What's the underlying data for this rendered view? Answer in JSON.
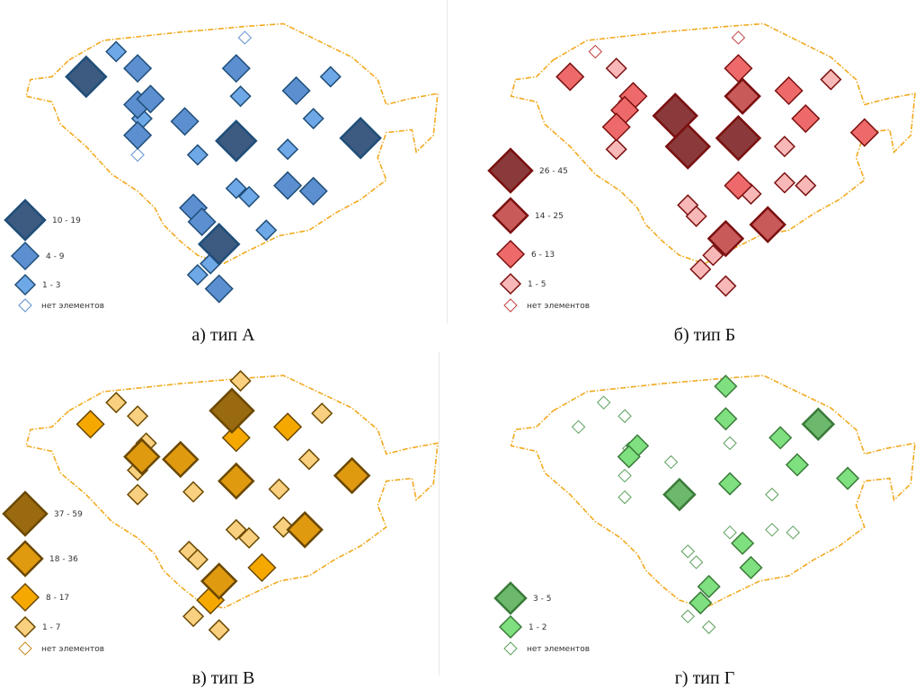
{
  "panels": [
    {
      "id": "a",
      "caption": "а) тип А",
      "colors": {
        "large": "#3d5a80",
        "medium": "#5b8fd0",
        "small": "#6fa8e6",
        "none": "#ffffff",
        "stroke": "#1f4e79",
        "none_stroke": "#5b8fd0"
      },
      "legend": [
        {
          "class": "large",
          "label": "10 - 19"
        },
        {
          "class": "medium",
          "label": "4 - 9"
        },
        {
          "class": "small",
          "label": "1 - 3"
        },
        {
          "class": "none",
          "label": "нет элементов"
        }
      ],
      "markers": [
        {
          "c": "large",
          "x": 0.18,
          "y": 0.23
        },
        {
          "c": "small",
          "x": 0.25,
          "y": 0.14
        },
        {
          "c": "medium",
          "x": 0.3,
          "y": 0.2
        },
        {
          "c": "medium",
          "x": 0.3,
          "y": 0.33
        },
        {
          "c": "medium",
          "x": 0.33,
          "y": 0.31
        },
        {
          "c": "small",
          "x": 0.31,
          "y": 0.38
        },
        {
          "c": "medium",
          "x": 0.3,
          "y": 0.44
        },
        {
          "c": "none",
          "x": 0.3,
          "y": 0.51
        },
        {
          "c": "medium",
          "x": 0.41,
          "y": 0.39
        },
        {
          "c": "small",
          "x": 0.44,
          "y": 0.51
        },
        {
          "c": "medium",
          "x": 0.53,
          "y": 0.2
        },
        {
          "c": "small",
          "x": 0.54,
          "y": 0.3
        },
        {
          "c": "large",
          "x": 0.53,
          "y": 0.46
        },
        {
          "c": "none",
          "x": 0.55,
          "y": 0.09
        },
        {
          "c": "medium",
          "x": 0.67,
          "y": 0.28
        },
        {
          "c": "small",
          "x": 0.75,
          "y": 0.23
        },
        {
          "c": "small",
          "x": 0.71,
          "y": 0.38
        },
        {
          "c": "small",
          "x": 0.65,
          "y": 0.49
        },
        {
          "c": "large",
          "x": 0.82,
          "y": 0.45
        },
        {
          "c": "small",
          "x": 0.53,
          "y": 0.63
        },
        {
          "c": "small",
          "x": 0.56,
          "y": 0.66
        },
        {
          "c": "medium",
          "x": 0.65,
          "y": 0.62
        },
        {
          "c": "medium",
          "x": 0.71,
          "y": 0.64
        },
        {
          "c": "medium",
          "x": 0.43,
          "y": 0.7
        },
        {
          "c": "medium",
          "x": 0.45,
          "y": 0.75
        },
        {
          "c": "small",
          "x": 0.6,
          "y": 0.78
        },
        {
          "c": "large",
          "x": 0.49,
          "y": 0.83
        },
        {
          "c": "small",
          "x": 0.47,
          "y": 0.9
        },
        {
          "c": "small",
          "x": 0.44,
          "y": 0.94
        },
        {
          "c": "medium",
          "x": 0.49,
          "y": 0.99
        }
      ]
    },
    {
      "id": "b",
      "caption": "б) тип Б",
      "colors": {
        "xlarge": "#8a3a3a",
        "large": "#c85a5a",
        "medium": "#ee6a6a",
        "small": "#f8b8b8",
        "none": "#ffffff",
        "stroke": "#7a1010",
        "none_stroke": "#c04040"
      },
      "legend": [
        {
          "class": "xlarge",
          "label": "26 - 45"
        },
        {
          "class": "large",
          "label": "14 - 25"
        },
        {
          "class": "medium",
          "label": "6 - 13"
        },
        {
          "class": "small",
          "label": "1 - 5"
        },
        {
          "class": "none",
          "label": "нет элементов"
        }
      ],
      "markers": [
        {
          "c": "none",
          "x": 0.24,
          "y": 0.14
        },
        {
          "c": "medium",
          "x": 0.18,
          "y": 0.23
        },
        {
          "c": "small",
          "x": 0.29,
          "y": 0.2
        },
        {
          "c": "medium",
          "x": 0.33,
          "y": 0.3
        },
        {
          "c": "none",
          "x": 0.31,
          "y": 0.32
        },
        {
          "c": "medium",
          "x": 0.31,
          "y": 0.35
        },
        {
          "c": "medium",
          "x": 0.29,
          "y": 0.41
        },
        {
          "c": "small",
          "x": 0.29,
          "y": 0.49
        },
        {
          "c": "xlarge",
          "x": 0.43,
          "y": 0.37
        },
        {
          "c": "xlarge",
          "x": 0.46,
          "y": 0.48
        },
        {
          "c": "xlarge",
          "x": 0.58,
          "y": 0.45
        },
        {
          "c": "none",
          "x": 0.58,
          "y": 0.09
        },
        {
          "c": "medium",
          "x": 0.58,
          "y": 0.2
        },
        {
          "c": "large",
          "x": 0.59,
          "y": 0.3
        },
        {
          "c": "medium",
          "x": 0.7,
          "y": 0.28
        },
        {
          "c": "small",
          "x": 0.8,
          "y": 0.24
        },
        {
          "c": "medium",
          "x": 0.74,
          "y": 0.38
        },
        {
          "c": "small",
          "x": 0.69,
          "y": 0.48
        },
        {
          "c": "medium",
          "x": 0.88,
          "y": 0.43
        },
        {
          "c": "medium",
          "x": 0.58,
          "y": 0.62
        },
        {
          "c": "small",
          "x": 0.61,
          "y": 0.65
        },
        {
          "c": "small",
          "x": 0.69,
          "y": 0.61
        },
        {
          "c": "small",
          "x": 0.74,
          "y": 0.62
        },
        {
          "c": "small",
          "x": 0.46,
          "y": 0.69
        },
        {
          "c": "small",
          "x": 0.48,
          "y": 0.73
        },
        {
          "c": "large",
          "x": 0.65,
          "y": 0.76
        },
        {
          "c": "large",
          "x": 0.55,
          "y": 0.81
        },
        {
          "c": "small",
          "x": 0.52,
          "y": 0.87
        },
        {
          "c": "small",
          "x": 0.49,
          "y": 0.92
        },
        {
          "c": "small",
          "x": 0.55,
          "y": 0.98
        }
      ]
    },
    {
      "id": "c",
      "caption": "в) тип В",
      "colors": {
        "xlarge": "#9a6a10",
        "large": "#e09a10",
        "medium": "#f5a800",
        "small": "#f8d080",
        "none": "#ffffff",
        "stroke": "#6a4800",
        "none_stroke": "#c88a20"
      },
      "legend": [
        {
          "class": "xlarge",
          "label": "37 - 59"
        },
        {
          "class": "large",
          "label": "18 - 36"
        },
        {
          "class": "medium",
          "label": "8 - 17"
        },
        {
          "class": "small",
          "label": "1 - 7"
        },
        {
          "class": "none",
          "label": "нет элементов"
        }
      ],
      "markers": [
        {
          "c": "small",
          "x": 0.25,
          "y": 0.14
        },
        {
          "c": "medium",
          "x": 0.19,
          "y": 0.22
        },
        {
          "c": "small",
          "x": 0.3,
          "y": 0.19
        },
        {
          "c": "small",
          "x": 0.32,
          "y": 0.29
        },
        {
          "c": "none",
          "x": 0.3,
          "y": 0.31
        },
        {
          "c": "large",
          "x": 0.31,
          "y": 0.34
        },
        {
          "c": "small",
          "x": 0.3,
          "y": 0.39
        },
        {
          "c": "small",
          "x": 0.3,
          "y": 0.48
        },
        {
          "c": "large",
          "x": 0.4,
          "y": 0.35
        },
        {
          "c": "small",
          "x": 0.43,
          "y": 0.47
        },
        {
          "c": "small",
          "x": 0.54,
          "y": 0.06
        },
        {
          "c": "xlarge",
          "x": 0.52,
          "y": 0.17
        },
        {
          "c": "medium",
          "x": 0.53,
          "y": 0.27
        },
        {
          "c": "large",
          "x": 0.53,
          "y": 0.43
        },
        {
          "c": "medium",
          "x": 0.65,
          "y": 0.23
        },
        {
          "c": "small",
          "x": 0.73,
          "y": 0.18
        },
        {
          "c": "small",
          "x": 0.7,
          "y": 0.35
        },
        {
          "c": "small",
          "x": 0.63,
          "y": 0.46
        },
        {
          "c": "large",
          "x": 0.8,
          "y": 0.41
        },
        {
          "c": "small",
          "x": 0.53,
          "y": 0.61
        },
        {
          "c": "small",
          "x": 0.56,
          "y": 0.64
        },
        {
          "c": "small",
          "x": 0.64,
          "y": 0.6
        },
        {
          "c": "large",
          "x": 0.69,
          "y": 0.61
        },
        {
          "c": "small",
          "x": 0.42,
          "y": 0.69
        },
        {
          "c": "small",
          "x": 0.44,
          "y": 0.72
        },
        {
          "c": "medium",
          "x": 0.59,
          "y": 0.75
        },
        {
          "c": "large",
          "x": 0.49,
          "y": 0.8
        },
        {
          "c": "medium",
          "x": 0.47,
          "y": 0.87
        },
        {
          "c": "small",
          "x": 0.43,
          "y": 0.93
        },
        {
          "c": "small",
          "x": 0.49,
          "y": 0.98
        }
      ]
    },
    {
      "id": "d",
      "caption": "г) тип Г",
      "colors": {
        "large": "#6cb86c",
        "small": "#7ee07e",
        "none": "#ffffff",
        "stroke": "#3a7a3a",
        "none_stroke": "#5aa05a"
      },
      "legend": [
        {
          "class": "large",
          "label": "3 - 5"
        },
        {
          "class": "small",
          "label": "1 - 2"
        },
        {
          "class": "none",
          "label": "нет элементов"
        }
      ],
      "markers": [
        {
          "c": "none",
          "x": 0.26,
          "y": 0.14
        },
        {
          "c": "none",
          "x": 0.2,
          "y": 0.23
        },
        {
          "c": "none",
          "x": 0.31,
          "y": 0.19
        },
        {
          "c": "small",
          "x": 0.34,
          "y": 0.3
        },
        {
          "c": "none",
          "x": 0.32,
          "y": 0.31
        },
        {
          "c": "small",
          "x": 0.32,
          "y": 0.34
        },
        {
          "c": "none",
          "x": 0.31,
          "y": 0.41
        },
        {
          "c": "none",
          "x": 0.31,
          "y": 0.49
        },
        {
          "c": "none",
          "x": 0.42,
          "y": 0.36
        },
        {
          "c": "large",
          "x": 0.44,
          "y": 0.48
        },
        {
          "c": "small",
          "x": 0.55,
          "y": 0.08
        },
        {
          "c": "small",
          "x": 0.55,
          "y": 0.2
        },
        {
          "c": "none",
          "x": 0.56,
          "y": 0.29
        },
        {
          "c": "small",
          "x": 0.56,
          "y": 0.44
        },
        {
          "c": "small",
          "x": 0.68,
          "y": 0.27
        },
        {
          "c": "large",
          "x": 0.77,
          "y": 0.22
        },
        {
          "c": "small",
          "x": 0.72,
          "y": 0.37
        },
        {
          "c": "none",
          "x": 0.66,
          "y": 0.48
        },
        {
          "c": "small",
          "x": 0.84,
          "y": 0.42
        },
        {
          "c": "none",
          "x": 0.56,
          "y": 0.62
        },
        {
          "c": "small",
          "x": 0.59,
          "y": 0.66
        },
        {
          "c": "none",
          "x": 0.66,
          "y": 0.61
        },
        {
          "c": "none",
          "x": 0.71,
          "y": 0.62
        },
        {
          "c": "none",
          "x": 0.46,
          "y": 0.69
        },
        {
          "c": "none",
          "x": 0.48,
          "y": 0.73
        },
        {
          "c": "small",
          "x": 0.61,
          "y": 0.75
        },
        {
          "c": "small",
          "x": 0.51,
          "y": 0.82
        },
        {
          "c": "small",
          "x": 0.49,
          "y": 0.88
        },
        {
          "c": "none",
          "x": 0.46,
          "y": 0.93
        },
        {
          "c": "none",
          "x": 0.51,
          "y": 0.97
        }
      ]
    }
  ]
}
